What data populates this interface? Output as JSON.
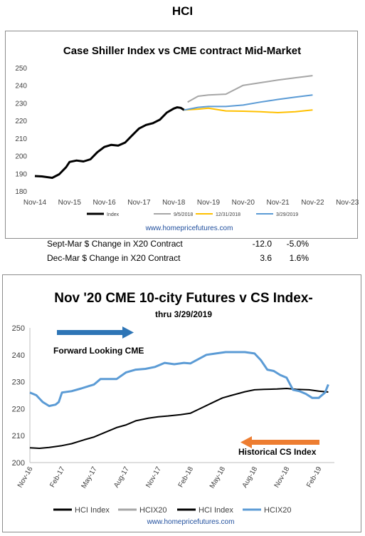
{
  "page": {
    "title": "HCI"
  },
  "top": {
    "title": "Case Shiller Index vs CME contract Mid-Market",
    "source": "www.homepricefutures.com",
    "stats": [
      {
        "label": "Sept-Mar $ Change in X20 Contract",
        "dollar": "-12.0",
        "pct": "-5.0%"
      },
      {
        "label": "Dec-Mar $ Change in X20 Contract",
        "dollar": "3.6",
        "pct": "1.6%"
      }
    ]
  },
  "bottom": {
    "title": "Nov '20 CME 10-city Futures v CS Index-",
    "subtitle": "thru 3/29/2019",
    "source": "www.homepricefutures.com",
    "annotations": {
      "forward": "Forward Looking CME",
      "historical": "Historical CS Index"
    }
  },
  "colors": {
    "black": "#000000",
    "gray": "#a6a6a6",
    "yellow": "#ffc000",
    "blue": "#5b9bd5",
    "arrow_blue": "#2e75b6",
    "arrow_orange": "#ed7d31"
  },
  "chart_data": [
    {
      "type": "line",
      "title": "Case Shiller Index vs CME contract Mid-Market",
      "categories": [
        "Nov-14",
        "Nov-15",
        "Nov-16",
        "Nov-17",
        "Nov-18",
        "Nov-19",
        "Nov-20",
        "Nov-21",
        "Nov-22",
        "Nov-23"
      ],
      "ylim": [
        180,
        250
      ],
      "yticks": [
        180,
        190,
        200,
        210,
        220,
        230,
        240,
        250
      ],
      "grid": false,
      "legend_position": "bottom",
      "series": [
        {
          "name": "Index",
          "color": "#000000",
          "x": [
            0,
            0.2,
            0.5,
            0.7,
            0.9,
            1.0,
            1.2,
            1.4,
            1.6,
            1.8,
            2.0,
            2.2,
            2.4,
            2.6,
            2.8,
            3.0,
            3.2,
            3.4,
            3.6,
            3.8,
            4.0,
            4.1,
            4.2,
            4.3
          ],
          "values": [
            188.5,
            188.3,
            187.5,
            189.5,
            193.5,
            196.5,
            197.3,
            196.8,
            198.0,
            202.0,
            205.0,
            206.2,
            205.8,
            207.5,
            211.5,
            215.5,
            217.5,
            218.5,
            220.5,
            224.5,
            226.8,
            227.5,
            227.2,
            226.0
          ]
        },
        {
          "name": "9/5/2018",
          "color": "#a6a6a6",
          "x": [
            4.4,
            4.7,
            5.0,
            5.5,
            6.0,
            6.5,
            7.0,
            7.5,
            8.0
          ],
          "values": [
            230.5,
            233.8,
            234.5,
            235.0,
            240.0,
            241.5,
            243.0,
            244.3,
            245.5
          ]
        },
        {
          "name": "12/31/2018",
          "color": "#ffc000",
          "x": [
            4.3,
            4.7,
            5.0,
            5.5,
            6.0,
            6.5,
            7.0,
            7.5,
            8.0
          ],
          "values": [
            226.0,
            226.5,
            227.0,
            225.5,
            225.3,
            225.0,
            224.5,
            225.0,
            226.0
          ]
        },
        {
          "name": "3/29/2019",
          "color": "#5b9bd5",
          "x": [
            4.3,
            4.7,
            5.0,
            5.5,
            6.0,
            6.5,
            7.0,
            7.5,
            8.0
          ],
          "values": [
            226.0,
            227.5,
            228.0,
            228.0,
            228.8,
            230.5,
            232.0,
            233.3,
            234.5
          ]
        }
      ]
    },
    {
      "type": "line",
      "title": "Nov '20 CME 10-city Futures v CS Index-",
      "categories": [
        "Nov-16",
        "Feb-17",
        "May-17",
        "Aug-17",
        "Nov-17",
        "Feb-18",
        "May-18",
        "Aug-18",
        "Nov-18",
        "Feb-19"
      ],
      "ylim": [
        200,
        250
      ],
      "yticks": [
        200,
        210,
        220,
        230,
        240,
        250
      ],
      "grid": false,
      "legend_position": "bottom",
      "legend": [
        "HCI Index",
        "HCIX20",
        "HCI Index",
        "HCIX20"
      ],
      "series": [
        {
          "name": "HCI Index",
          "color": "#000000",
          "x": [
            0,
            0.3,
            0.6,
            1.0,
            1.3,
            1.7,
            2.0,
            2.3,
            2.7,
            3.0,
            3.3,
            3.7,
            4.0,
            4.3,
            4.7,
            5.0,
            5.3,
            5.7,
            6.0,
            6.3,
            6.7,
            7.0,
            7.3,
            7.7,
            8.0,
            8.3,
            8.7,
            9.0,
            9.3
          ],
          "values": [
            205.5,
            205.3,
            205.6,
            206.3,
            207.0,
            208.5,
            209.5,
            211.0,
            213.0,
            214.0,
            215.5,
            216.5,
            217.0,
            217.3,
            217.8,
            218.3,
            220.0,
            222.3,
            224.0,
            225.0,
            226.3,
            227.0,
            227.2,
            227.3,
            227.5,
            227.2,
            227.0,
            226.5,
            226.2
          ]
        },
        {
          "name": "HCIX20",
          "color": "#5b9bd5",
          "x": [
            0,
            0.2,
            0.4,
            0.6,
            0.8,
            0.9,
            1.0,
            1.3,
            1.6,
            2.0,
            2.2,
            2.4,
            2.7,
            3.0,
            3.3,
            3.6,
            3.9,
            4.2,
            4.5,
            4.8,
            5.0,
            5.5,
            5.8,
            6.1,
            6.4,
            6.7,
            7.0,
            7.2,
            7.4,
            7.6,
            7.8,
            8.0,
            8.2,
            8.4,
            8.6,
            8.8,
            9.0,
            9.2,
            9.3
          ],
          "values": [
            226.0,
            225.0,
            222.5,
            221.0,
            221.5,
            222.5,
            226.0,
            226.5,
            227.5,
            229.0,
            231.0,
            231.0,
            231.0,
            233.5,
            234.5,
            234.8,
            235.5,
            237.0,
            236.5,
            237.0,
            236.8,
            240.0,
            240.5,
            241.0,
            241.0,
            241.0,
            240.5,
            238.0,
            234.5,
            234.0,
            232.5,
            231.5,
            227.0,
            226.5,
            225.5,
            224.0,
            224.0,
            226.0,
            229.0
          ]
        }
      ]
    }
  ]
}
